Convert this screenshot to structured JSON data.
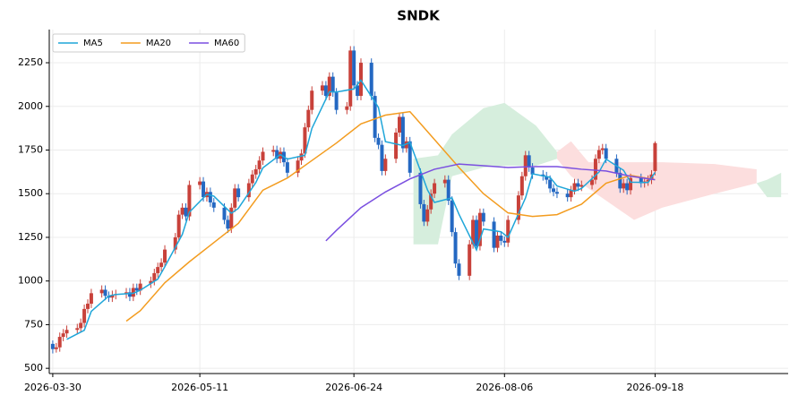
{
  "chart_data": {
    "type": "candlestick",
    "title": "SNDK",
    "xlim": [
      "2026-03-29",
      "2026-10-26"
    ],
    "xticks": [
      "2026-03-30",
      "2026-05-11",
      "2026-06-24",
      "2026-08-06",
      "2026-09-18"
    ],
    "ylim": [
      470,
      2440
    ],
    "yticks": [
      500,
      750,
      1000,
      1250,
      1500,
      1750,
      2000,
      2250
    ],
    "grid": true,
    "legend": "upper left",
    "candles": {
      "up_color": "#c8413a",
      "down_color": "#2468c2",
      "x": [
        "2026-03-30",
        "2026-03-31",
        "2026-04-01",
        "2026-04-02",
        "2026-04-03",
        "2026-04-06",
        "2026-04-07",
        "2026-04-08",
        "2026-04-09",
        "2026-04-10",
        "2026-04-13",
        "2026-04-14",
        "2026-04-15",
        "2026-04-16",
        "2026-04-17",
        "2026-04-20",
        "2026-04-21",
        "2026-04-22",
        "2026-04-23",
        "2026-04-24",
        "2026-04-27",
        "2026-04-28",
        "2026-04-29",
        "2026-04-30",
        "2026-05-01",
        "2026-05-04",
        "2026-05-05",
        "2026-05-06",
        "2026-05-07",
        "2026-05-08",
        "2026-05-11",
        "2026-05-12",
        "2026-05-13",
        "2026-05-14",
        "2026-05-15",
        "2026-05-18",
        "2026-05-19",
        "2026-05-20",
        "2026-05-21",
        "2026-05-22",
        "2026-05-25",
        "2026-05-26",
        "2026-05-27",
        "2026-05-28",
        "2026-05-29",
        "2026-06-01",
        "2026-06-02",
        "2026-06-03",
        "2026-06-04",
        "2026-06-05",
        "2026-06-08",
        "2026-06-09",
        "2026-06-10",
        "2026-06-11",
        "2026-06-12",
        "2026-06-15",
        "2026-06-16",
        "2026-06-17",
        "2026-06-18",
        "2026-06-19",
        "2026-06-22",
        "2026-06-23",
        "2026-06-24",
        "2026-06-25",
        "2026-06-26",
        "2026-06-29",
        "2026-06-30",
        "2026-07-01",
        "2026-07-02",
        "2026-07-03",
        "2026-07-06",
        "2026-07-07",
        "2026-07-08",
        "2026-07-09",
        "2026-07-10",
        "2026-07-13",
        "2026-07-14",
        "2026-07-15",
        "2026-07-16",
        "2026-07-17",
        "2026-07-20",
        "2026-07-21",
        "2026-07-22",
        "2026-07-23",
        "2026-07-24",
        "2026-07-27",
        "2026-07-28",
        "2026-07-29",
        "2026-07-30",
        "2026-07-31",
        "2026-08-03",
        "2026-08-04",
        "2026-08-05",
        "2026-08-06",
        "2026-08-07",
        "2026-08-10",
        "2026-08-11",
        "2026-08-12",
        "2026-08-13",
        "2026-08-14",
        "2026-08-17",
        "2026-08-18",
        "2026-08-19",
        "2026-08-20",
        "2026-08-21",
        "2026-08-24",
        "2026-08-25",
        "2026-08-26",
        "2026-08-27",
        "2026-08-28",
        "2026-08-31",
        "2026-09-01",
        "2026-09-02",
        "2026-09-03",
        "2026-09-04",
        "2026-09-07",
        "2026-09-08",
        "2026-09-09",
        "2026-09-10",
        "2026-09-11",
        "2026-09-14",
        "2026-09-15",
        "2026-09-16",
        "2026-09-17",
        "2026-09-18"
      ],
      "ohlc": [
        [
          640,
          660,
          585,
          610
        ],
        [
          610,
          645,
          590,
          620
        ],
        [
          620,
          705,
          595,
          680
        ],
        [
          680,
          725,
          655,
          700
        ],
        [
          700,
          745,
          675,
          720
        ],
        [
          720,
          755,
          695,
          730
        ],
        [
          730,
          785,
          705,
          760
        ],
        [
          760,
          865,
          735,
          840
        ],
        [
          840,
          895,
          815,
          870
        ],
        [
          870,
          955,
          845,
          930
        ],
        [
          930,
          975,
          905,
          950
        ],
        [
          950,
          975,
          890,
          915
        ],
        [
          915,
          940,
          880,
          905
        ],
        [
          905,
          945,
          880,
          920
        ],
        [
          920,
          950,
          895,
          925
        ],
        [
          925,
          960,
          900,
          935
        ],
        [
          935,
          960,
          885,
          910
        ],
        [
          910,
          985,
          885,
          960
        ],
        [
          960,
          985,
          920,
          945
        ],
        [
          945,
          1010,
          920,
          985
        ],
        [
          985,
          1025,
          960,
          1000
        ],
        [
          1000,
          1070,
          975,
          1045
        ],
        [
          1045,
          1105,
          1020,
          1080
        ],
        [
          1080,
          1130,
          1055,
          1105
        ],
        [
          1105,
          1205,
          1080,
          1180
        ],
        [
          1180,
          1275,
          1155,
          1250
        ],
        [
          1250,
          1405,
          1225,
          1380
        ],
        [
          1380,
          1445,
          1355,
          1420
        ],
        [
          1420,
          1445,
          1345,
          1370
        ],
        [
          1370,
          1575,
          1345,
          1550
        ],
        [
          1550,
          1595,
          1525,
          1570
        ],
        [
          1570,
          1595,
          1455,
          1480
        ],
        [
          1480,
          1535,
          1455,
          1510
        ],
        [
          1510,
          1535,
          1425,
          1450
        ],
        [
          1450,
          1475,
          1395,
          1420
        ],
        [
          1420,
          1445,
          1325,
          1350
        ],
        [
          1350,
          1375,
          1275,
          1300
        ],
        [
          1300,
          1445,
          1275,
          1420
        ],
        [
          1420,
          1555,
          1395,
          1530
        ],
        [
          1530,
          1555,
          1455,
          1480
        ],
        [
          1480,
          1585,
          1455,
          1560
        ],
        [
          1560,
          1635,
          1535,
          1610
        ],
        [
          1610,
          1665,
          1585,
          1640
        ],
        [
          1640,
          1715,
          1615,
          1690
        ],
        [
          1690,
          1765,
          1665,
          1740
        ],
        [
          1740,
          1775,
          1715,
          1750
        ],
        [
          1750,
          1775,
          1675,
          1700
        ],
        [
          1700,
          1765,
          1675,
          1740
        ],
        [
          1740,
          1765,
          1655,
          1680
        ],
        [
          1680,
          1705,
          1595,
          1620
        ],
        [
          1620,
          1715,
          1595,
          1690
        ],
        [
          1690,
          1755,
          1665,
          1730
        ],
        [
          1730,
          1905,
          1705,
          1880
        ],
        [
          1880,
          2005,
          1855,
          1980
        ],
        [
          1980,
          2115,
          1955,
          2090
        ],
        [
          2090,
          2145,
          2065,
          2120
        ],
        [
          2120,
          2145,
          2035,
          2060
        ],
        [
          2060,
          2195,
          2035,
          2170
        ],
        [
          2170,
          2195,
          2055,
          2080
        ],
        [
          2080,
          2105,
          1955,
          1980
        ],
        [
          1980,
          2025,
          1955,
          2000
        ],
        [
          2000,
          2345,
          1975,
          2320
        ],
        [
          2320,
          2345,
          2095,
          2120
        ],
        [
          2120,
          2145,
          2035,
          2060
        ],
        [
          2060,
          2275,
          2035,
          2250
        ],
        [
          2250,
          2275,
          2035,
          2060
        ],
        [
          2060,
          2085,
          1795,
          1820
        ],
        [
          1820,
          1845,
          1755,
          1780
        ],
        [
          1780,
          1805,
          1605,
          1630
        ],
        [
          1630,
          1725,
          1605,
          1700
        ],
        [
          1700,
          1875,
          1675,
          1850
        ],
        [
          1850,
          1965,
          1825,
          1940
        ],
        [
          1940,
          1965,
          1735,
          1760
        ],
        [
          1760,
          1825,
          1735,
          1800
        ],
        [
          1800,
          1825,
          1595,
          1620
        ],
        [
          1620,
          1645,
          1415,
          1440
        ],
        [
          1440,
          1465,
          1315,
          1340
        ],
        [
          1340,
          1435,
          1315,
          1410
        ],
        [
          1410,
          1525,
          1385,
          1500
        ],
        [
          1500,
          1585,
          1475,
          1560
        ],
        [
          1560,
          1605,
          1535,
          1580
        ],
        [
          1580,
          1605,
          1435,
          1460
        ],
        [
          1460,
          1485,
          1255,
          1280
        ],
        [
          1280,
          1305,
          1075,
          1100
        ],
        [
          1100,
          1125,
          1005,
          1030
        ],
        [
          1030,
          1235,
          1005,
          1210
        ],
        [
          1210,
          1375,
          1185,
          1350
        ],
        [
          1350,
          1375,
          1175,
          1200
        ],
        [
          1200,
          1415,
          1175,
          1390
        ],
        [
          1390,
          1415,
          1315,
          1340
        ],
        [
          1340,
          1365,
          1165,
          1190
        ],
        [
          1190,
          1285,
          1165,
          1260
        ],
        [
          1260,
          1285,
          1205,
          1230
        ],
        [
          1230,
          1255,
          1195,
          1220
        ],
        [
          1220,
          1375,
          1195,
          1350
        ],
        [
          1350,
          1515,
          1325,
          1490
        ],
        [
          1490,
          1625,
          1465,
          1600
        ],
        [
          1600,
          1745,
          1575,
          1720
        ],
        [
          1720,
          1745,
          1625,
          1650
        ],
        [
          1650,
          1675,
          1585,
          1610
        ],
        [
          1610,
          1635,
          1575,
          1600
        ],
        [
          1600,
          1625,
          1555,
          1580
        ],
        [
          1580,
          1605,
          1505,
          1530
        ],
        [
          1530,
          1555,
          1485,
          1510
        ],
        [
          1510,
          1535,
          1475,
          1500
        ],
        [
          1500,
          1525,
          1455,
          1480
        ],
        [
          1480,
          1545,
          1455,
          1520
        ],
        [
          1520,
          1585,
          1495,
          1560
        ],
        [
          1560,
          1585,
          1515,
          1540
        ],
        [
          1540,
          1575,
          1515,
          1550
        ],
        [
          1550,
          1605,
          1525,
          1580
        ],
        [
          1580,
          1725,
          1555,
          1700
        ],
        [
          1700,
          1775,
          1675,
          1750
        ],
        [
          1750,
          1785,
          1725,
          1760
        ],
        [
          1760,
          1785,
          1675,
          1700
        ],
        [
          1700,
          1725,
          1595,
          1620
        ],
        [
          1620,
          1645,
          1505,
          1530
        ],
        [
          1530,
          1585,
          1505,
          1560
        ],
        [
          1560,
          1585,
          1495,
          1520
        ],
        [
          1520,
          1615,
          1495,
          1590
        ],
        [
          1590,
          1615,
          1535,
          1560
        ],
        [
          1560,
          1595,
          1535,
          1570
        ],
        [
          1570,
          1605,
          1545,
          1580
        ],
        [
          1580,
          1635,
          1555,
          1610
        ],
        [
          1630,
          1800,
          1605,
          1790
        ]
      ]
    },
    "cloud": [
      {
        "color": "#d6eedd",
        "x": [
          "2026-07-11",
          "2026-07-18",
          "2026-07-22",
          "2026-07-31",
          "2026-08-06",
          "2026-08-15",
          "2026-08-21"
        ],
        "upper": [
          1700,
          1720,
          1840,
          1990,
          2020,
          1890,
          1740
        ],
        "lower": [
          1210,
          1210,
          1600,
          1650,
          1660,
          1660,
          1700
        ]
      },
      {
        "color": "#fcdede",
        "x": [
          "2026-08-21",
          "2026-08-25",
          "2026-08-30",
          "2026-09-12",
          "2026-09-20",
          "2026-10-05",
          "2026-10-17"
        ],
        "upper": [
          1740,
          1800,
          1680,
          1680,
          1680,
          1670,
          1640
        ],
        "lower": [
          1700,
          1600,
          1530,
          1350,
          1420,
          1500,
          1560
        ]
      },
      {
        "color": "#d6eedd",
        "x": [
          "2026-10-17",
          "2026-10-20",
          "2026-10-24"
        ],
        "upper": [
          1560,
          1580,
          1620
        ],
        "lower": [
          1560,
          1480,
          1480
        ]
      }
    ],
    "series": [
      {
        "name": "MA5",
        "color": "#1fa6d9",
        "x": [
          "2026-04-03",
          "2026-04-08",
          "2026-04-10",
          "2026-04-15",
          "2026-04-17",
          "2026-04-22",
          "2026-04-24",
          "2026-04-29",
          "2026-05-01",
          "2026-05-06",
          "2026-05-08",
          "2026-05-13",
          "2026-05-15",
          "2026-05-20",
          "2026-05-22",
          "2026-05-27",
          "2026-05-29",
          "2026-06-03",
          "2026-06-05",
          "2026-06-10",
          "2026-06-12",
          "2026-06-17",
          "2026-06-19",
          "2026-06-24",
          "2026-06-26",
          "2026-07-01",
          "2026-07-03",
          "2026-07-08",
          "2026-07-10",
          "2026-07-15",
          "2026-07-17",
          "2026-07-22",
          "2026-07-24",
          "2026-07-29",
          "2026-07-31",
          "2026-08-05",
          "2026-08-07",
          "2026-08-12",
          "2026-08-14",
          "2026-08-19",
          "2026-08-21",
          "2026-08-26",
          "2026-08-28",
          "2026-09-02",
          "2026-09-04",
          "2026-09-09",
          "2026-09-11",
          "2026-09-16",
          "2026-09-18"
        ],
        "values": [
          666,
          718,
          826,
          914,
          923,
          930,
          947,
          1011,
          1082,
          1267,
          1394,
          1496,
          1486,
          1388,
          1416,
          1564,
          1648,
          1724,
          1698,
          1720,
          1874,
          2084,
          2082,
          2100,
          2150,
          1994,
          1798,
          1776,
          1794,
          1522,
          1450,
          1476,
          1382,
          1178,
          1298,
          1282,
          1250,
          1476,
          1614,
          1594,
          1544,
          1514,
          1530,
          1624,
          1698,
          1634,
          1566,
          1564,
          1622
        ]
      },
      {
        "name": "MA20",
        "color": "#f39c1f",
        "x": [
          "2026-04-20",
          "2026-04-24",
          "2026-05-01",
          "2026-05-08",
          "2026-05-15",
          "2026-05-22",
          "2026-05-29",
          "2026-06-05",
          "2026-06-12",
          "2026-06-19",
          "2026-06-26",
          "2026-07-03",
          "2026-07-10",
          "2026-07-17",
          "2026-07-24",
          "2026-07-31",
          "2026-08-07",
          "2026-08-14",
          "2026-08-21",
          "2026-08-28",
          "2026-09-04",
          "2026-09-11",
          "2026-09-18"
        ],
        "values": [
          770,
          830,
          990,
          1110,
          1220,
          1330,
          1520,
          1590,
          1690,
          1790,
          1900,
          1950,
          1970,
          1810,
          1650,
          1500,
          1390,
          1370,
          1380,
          1440,
          1560,
          1605,
          1580
        ]
      },
      {
        "name": "MA60",
        "color": "#7a4fe0",
        "x": [
          "2026-06-16",
          "2026-06-19",
          "2026-06-26",
          "2026-07-03",
          "2026-07-10",
          "2026-07-17",
          "2026-07-24",
          "2026-07-31",
          "2026-08-07",
          "2026-08-14",
          "2026-08-21",
          "2026-08-28",
          "2026-09-04",
          "2026-09-11",
          "2026-09-18"
        ],
        "values": [
          1230,
          1290,
          1420,
          1510,
          1585,
          1640,
          1670,
          1660,
          1650,
          1655,
          1655,
          1640,
          1630,
          1600,
          1580
        ]
      }
    ]
  }
}
